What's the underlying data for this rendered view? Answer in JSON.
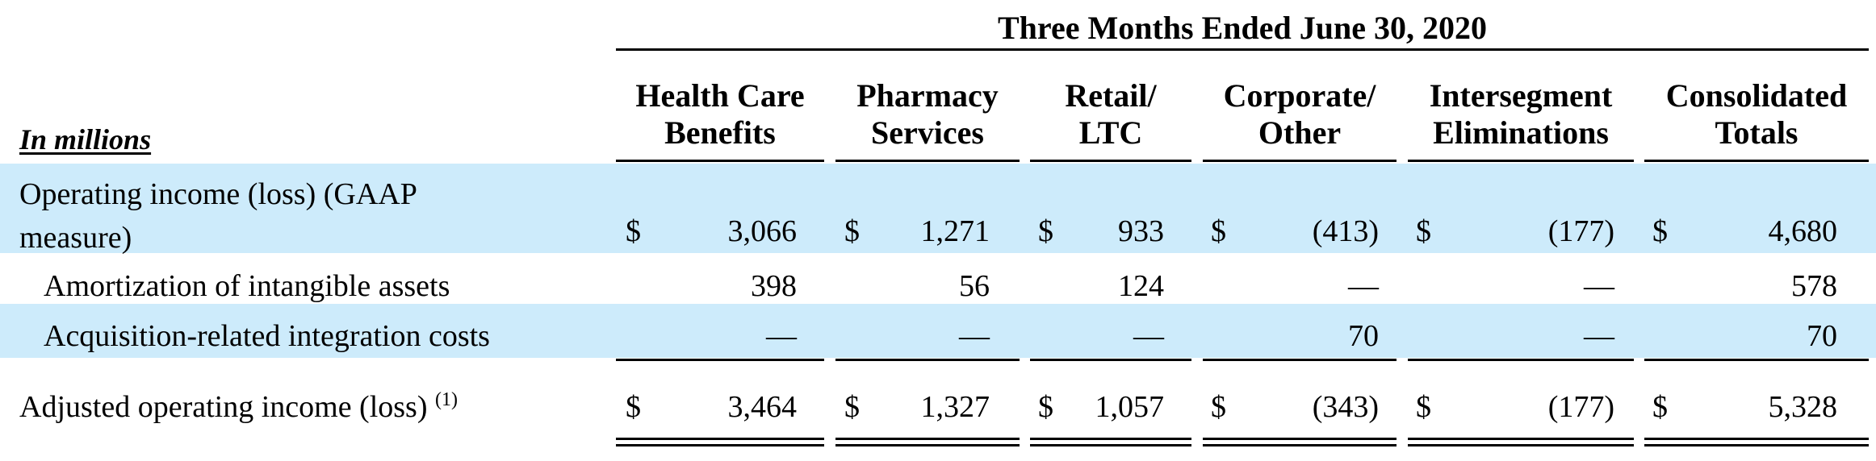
{
  "table": {
    "period_header": "Three Months Ended June 30, 2020",
    "units_label": "In millions",
    "columns": [
      {
        "l1": "Health Care",
        "l2": "Benefits"
      },
      {
        "l1": "Pharmacy",
        "l2": "Services"
      },
      {
        "l1": "Retail/",
        "l2": "LTC"
      },
      {
        "l1": "Corporate/",
        "l2": "Other"
      },
      {
        "l1": "Intersegment",
        "l2": "Eliminations"
      },
      {
        "l1": "Consolidated",
        "l2": "Totals"
      }
    ],
    "currency_symbol": "$",
    "rows": [
      {
        "label1": "Operating income (loss) (GAAP",
        "label2": "measure)",
        "values": [
          "3,066",
          "1,271",
          "933",
          "(413)",
          "(177)",
          "4,680"
        ]
      },
      {
        "label": "Amortization of intangible assets",
        "values": [
          "398",
          "56",
          "124",
          "—",
          "—",
          "578"
        ]
      },
      {
        "label": "Acquisition-related integration costs",
        "values": [
          "—",
          "—",
          "—",
          "70",
          "—",
          "70"
        ]
      },
      {
        "label": "Adjusted operating income (loss)",
        "footnote": "(1)",
        "values": [
          "3,464",
          "1,327",
          "1,057",
          "(343)",
          "(177)",
          "5,328"
        ]
      }
    ]
  }
}
